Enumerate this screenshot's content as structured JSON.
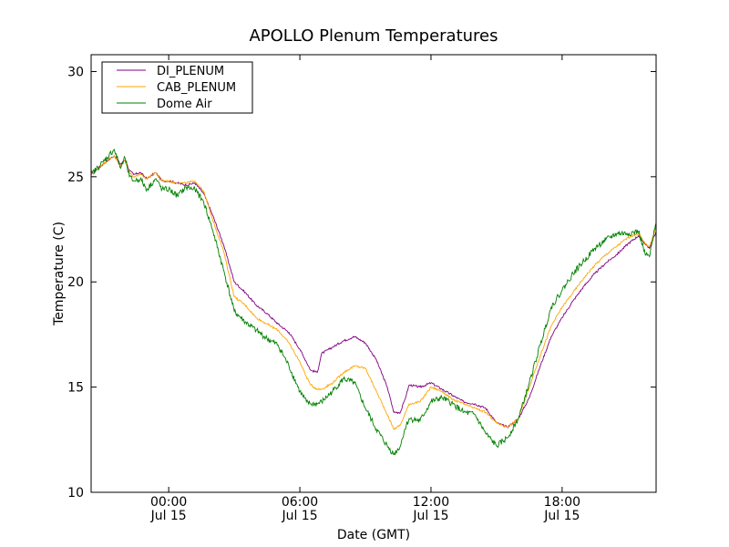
{
  "chart_data": {
    "type": "line",
    "title": "APOLLO Plenum Temperatures",
    "xlabel": "Date (GMT)",
    "ylabel": "Temperature (C)",
    "xlim": [
      -3.55,
      22.3
    ],
    "ylim": [
      10,
      30.8
    ],
    "grid": false,
    "legend_position": "top-left",
    "x_ticks": [
      {
        "x": 0,
        "time": "00:00",
        "date": "Jul 15"
      },
      {
        "x": 6,
        "time": "06:00",
        "date": "Jul 15"
      },
      {
        "x": 12,
        "time": "12:00",
        "date": "Jul 15"
      },
      {
        "x": 18,
        "time": "18:00",
        "date": "Jul 15"
      }
    ],
    "y_ticks": [
      10,
      15,
      20,
      25,
      30
    ],
    "x_unit": "hours relative to 00:00 Jul 15 (GMT)",
    "series": [
      {
        "name": "DI_PLENUM",
        "color": "#800080",
        "noise": 0.05,
        "points": [
          [
            -3.55,
            25.1
          ],
          [
            -3.0,
            25.6
          ],
          [
            -2.5,
            26.0
          ],
          [
            -2.2,
            25.6
          ],
          [
            -2.0,
            25.8
          ],
          [
            -1.8,
            25.3
          ],
          [
            -1.6,
            25.1
          ],
          [
            -1.3,
            25.2
          ],
          [
            -1.0,
            24.9
          ],
          [
            -0.6,
            25.2
          ],
          [
            -0.3,
            24.8
          ],
          [
            0.0,
            24.8
          ],
          [
            0.4,
            24.7
          ],
          [
            0.8,
            24.6
          ],
          [
            1.2,
            24.7
          ],
          [
            1.6,
            24.2
          ],
          [
            2.0,
            23.2
          ],
          [
            2.5,
            21.8
          ],
          [
            3.0,
            20.0
          ],
          [
            3.5,
            19.5
          ],
          [
            4.0,
            18.9
          ],
          [
            4.5,
            18.5
          ],
          [
            5.0,
            18.0
          ],
          [
            5.5,
            17.6
          ],
          [
            6.0,
            16.8
          ],
          [
            6.3,
            16.2
          ],
          [
            6.5,
            15.8
          ],
          [
            6.8,
            15.7
          ],
          [
            7.0,
            16.6
          ],
          [
            7.5,
            16.9
          ],
          [
            8.0,
            17.2
          ],
          [
            8.5,
            17.4
          ],
          [
            9.0,
            17.1
          ],
          [
            9.5,
            16.3
          ],
          [
            10.0,
            15.0
          ],
          [
            10.3,
            13.8
          ],
          [
            10.6,
            13.8
          ],
          [
            10.8,
            14.4
          ],
          [
            11.0,
            15.1
          ],
          [
            11.5,
            15.0
          ],
          [
            12.0,
            15.2
          ],
          [
            12.5,
            14.9
          ],
          [
            13.0,
            14.6
          ],
          [
            13.5,
            14.3
          ],
          [
            14.0,
            14.2
          ],
          [
            14.5,
            14.0
          ],
          [
            15.0,
            13.3
          ],
          [
            15.5,
            13.1
          ],
          [
            16.0,
            13.5
          ],
          [
            16.5,
            14.5
          ],
          [
            17.0,
            16.0
          ],
          [
            17.5,
            17.4
          ],
          [
            18.0,
            18.3
          ],
          [
            18.5,
            19.1
          ],
          [
            19.0,
            19.8
          ],
          [
            19.5,
            20.4
          ],
          [
            20.0,
            20.9
          ],
          [
            20.5,
            21.3
          ],
          [
            21.0,
            21.8
          ],
          [
            21.5,
            22.2
          ],
          [
            21.8,
            21.8
          ],
          [
            22.0,
            21.6
          ],
          [
            22.3,
            22.4
          ]
        ]
      },
      {
        "name": "CAB_PLENUM",
        "color": "#ffa500",
        "noise": 0.05,
        "points": [
          [
            -3.55,
            25.1
          ],
          [
            -3.0,
            25.6
          ],
          [
            -2.5,
            26.0
          ],
          [
            -2.2,
            25.5
          ],
          [
            -2.0,
            25.8
          ],
          [
            -1.8,
            25.2
          ],
          [
            -1.6,
            25.0
          ],
          [
            -1.3,
            25.1
          ],
          [
            -1.0,
            24.9
          ],
          [
            -0.6,
            25.2
          ],
          [
            -0.3,
            24.8
          ],
          [
            0.0,
            24.8
          ],
          [
            0.4,
            24.7
          ],
          [
            0.8,
            24.7
          ],
          [
            1.2,
            24.8
          ],
          [
            1.6,
            24.3
          ],
          [
            2.0,
            23.0
          ],
          [
            2.5,
            21.5
          ],
          [
            3.0,
            19.3
          ],
          [
            3.5,
            18.9
          ],
          [
            4.0,
            18.3
          ],
          [
            4.5,
            18.0
          ],
          [
            5.0,
            17.7
          ],
          [
            5.5,
            17.1
          ],
          [
            6.0,
            16.2
          ],
          [
            6.3,
            15.5
          ],
          [
            6.5,
            15.1
          ],
          [
            6.8,
            14.9
          ],
          [
            7.0,
            14.9
          ],
          [
            7.5,
            15.2
          ],
          [
            8.0,
            15.7
          ],
          [
            8.5,
            16.0
          ],
          [
            9.0,
            15.9
          ],
          [
            9.5,
            14.8
          ],
          [
            10.0,
            13.7
          ],
          [
            10.3,
            13.0
          ],
          [
            10.6,
            13.2
          ],
          [
            10.8,
            13.7
          ],
          [
            11.0,
            14.2
          ],
          [
            11.5,
            14.3
          ],
          [
            12.0,
            15.0
          ],
          [
            12.5,
            14.8
          ],
          [
            13.0,
            14.4
          ],
          [
            13.5,
            14.2
          ],
          [
            14.0,
            14.0
          ],
          [
            14.5,
            13.8
          ],
          [
            15.0,
            13.3
          ],
          [
            15.5,
            13.1
          ],
          [
            16.0,
            13.5
          ],
          [
            16.5,
            15.0
          ],
          [
            17.0,
            16.5
          ],
          [
            17.5,
            17.9
          ],
          [
            18.0,
            18.8
          ],
          [
            18.5,
            19.5
          ],
          [
            19.0,
            20.2
          ],
          [
            19.5,
            20.8
          ],
          [
            20.0,
            21.3
          ],
          [
            20.5,
            21.7
          ],
          [
            21.0,
            22.1
          ],
          [
            21.5,
            22.3
          ],
          [
            21.8,
            21.8
          ],
          [
            22.0,
            21.7
          ],
          [
            22.3,
            22.6
          ]
        ]
      },
      {
        "name": "Dome Air",
        "color": "#008000",
        "noise": 0.14,
        "points": [
          [
            -3.55,
            25.1
          ],
          [
            -3.0,
            25.7
          ],
          [
            -2.5,
            26.3
          ],
          [
            -2.2,
            25.4
          ],
          [
            -2.0,
            25.9
          ],
          [
            -1.8,
            25.0
          ],
          [
            -1.6,
            24.8
          ],
          [
            -1.3,
            24.9
          ],
          [
            -1.0,
            24.4
          ],
          [
            -0.6,
            24.9
          ],
          [
            -0.3,
            24.4
          ],
          [
            0.0,
            24.4
          ],
          [
            0.4,
            24.1
          ],
          [
            0.8,
            24.5
          ],
          [
            1.2,
            24.4
          ],
          [
            1.6,
            23.8
          ],
          [
            2.0,
            22.5
          ],
          [
            2.5,
            20.6
          ],
          [
            3.0,
            18.6
          ],
          [
            3.5,
            18.1
          ],
          [
            4.0,
            17.7
          ],
          [
            4.5,
            17.3
          ],
          [
            5.0,
            17.0
          ],
          [
            5.5,
            16.0
          ],
          [
            6.0,
            14.8
          ],
          [
            6.3,
            14.3
          ],
          [
            6.5,
            14.2
          ],
          [
            6.8,
            14.2
          ],
          [
            7.0,
            14.3
          ],
          [
            7.5,
            14.8
          ],
          [
            8.0,
            15.4
          ],
          [
            8.5,
            15.2
          ],
          [
            9.0,
            14.0
          ],
          [
            9.5,
            13.0
          ],
          [
            10.0,
            12.2
          ],
          [
            10.3,
            11.8
          ],
          [
            10.6,
            12.2
          ],
          [
            10.8,
            13.0
          ],
          [
            11.0,
            13.5
          ],
          [
            11.5,
            13.4
          ],
          [
            12.0,
            14.3
          ],
          [
            12.5,
            14.5
          ],
          [
            13.0,
            14.2
          ],
          [
            13.5,
            13.8
          ],
          [
            14.0,
            13.7
          ],
          [
            14.5,
            12.8
          ],
          [
            15.0,
            12.2
          ],
          [
            15.5,
            12.6
          ],
          [
            16.0,
            13.5
          ],
          [
            16.5,
            15.2
          ],
          [
            17.0,
            17.0
          ],
          [
            17.5,
            18.8
          ],
          [
            18.0,
            19.6
          ],
          [
            18.5,
            20.4
          ],
          [
            19.0,
            21.0
          ],
          [
            19.5,
            21.6
          ],
          [
            20.0,
            22.0
          ],
          [
            20.5,
            22.3
          ],
          [
            21.0,
            22.3
          ],
          [
            21.5,
            22.4
          ],
          [
            21.8,
            21.3
          ],
          [
            22.0,
            21.2
          ],
          [
            22.3,
            22.8
          ]
        ]
      }
    ]
  }
}
